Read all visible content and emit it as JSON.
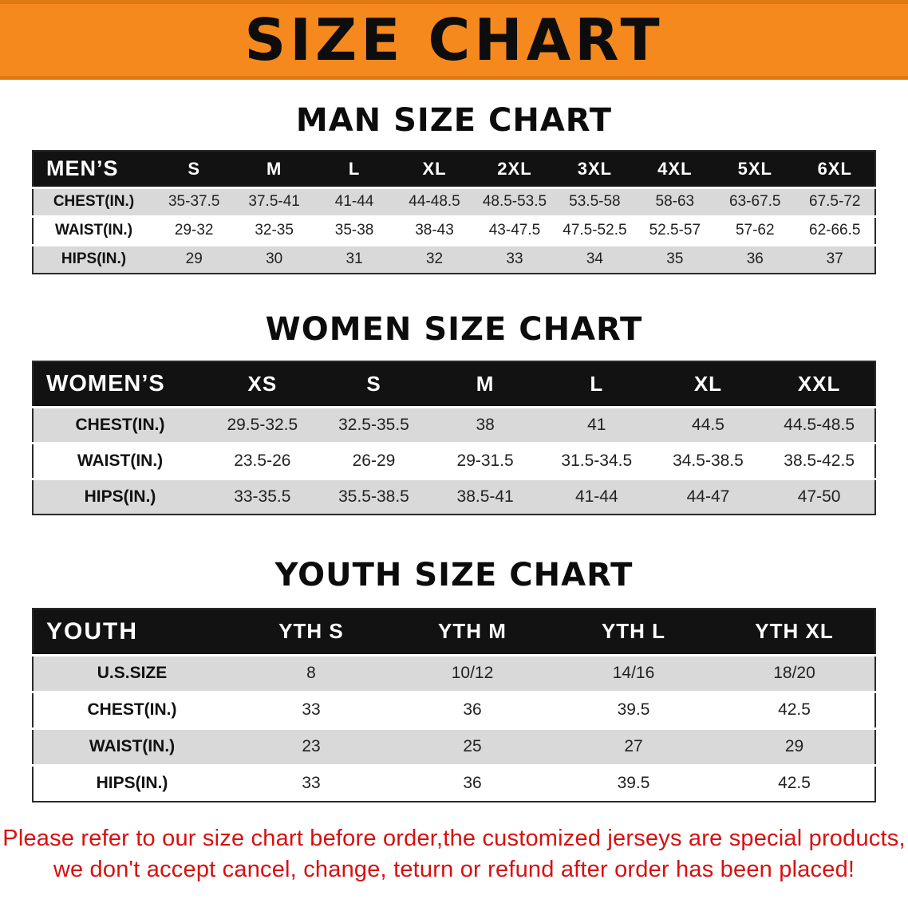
{
  "banner": {
    "title": "SIZE CHART"
  },
  "sections": [
    {
      "heading": "MAN SIZE CHART",
      "table": {
        "header": [
          "MEN’S",
          "S",
          "M",
          "L",
          "XL",
          "2XL",
          "3XL",
          "4XL",
          "5XL",
          "6XL"
        ],
        "rows": [
          [
            "CHEST(IN.)",
            "35-37.5",
            "37.5-41",
            "41-44",
            "44-48.5",
            "48.5-53.5",
            "53.5-58",
            "58-63",
            "63-67.5",
            "67.5-72"
          ],
          [
            "WAIST(IN.)",
            "29-32",
            "32-35",
            "35-38",
            "38-43",
            "43-47.5",
            "47.5-52.5",
            "52.5-57",
            "57-62",
            "62-66.5"
          ],
          [
            "HIPS(IN.)",
            "29",
            "30",
            "31",
            "32",
            "33",
            "34",
            "35",
            "36",
            "37"
          ]
        ]
      }
    },
    {
      "heading": "WOMEN SIZE CHART",
      "table": {
        "header": [
          "WOMEN’S",
          "XS",
          "S",
          "M",
          "L",
          "XL",
          "XXL"
        ],
        "rows": [
          [
            "CHEST(IN.)",
            "29.5-32.5",
            "32.5-35.5",
            "38",
            "41",
            "44.5",
            "44.5-48.5"
          ],
          [
            "WAIST(IN.)",
            "23.5-26",
            "26-29",
            "29-31.5",
            "31.5-34.5",
            "34.5-38.5",
            "38.5-42.5"
          ],
          [
            "HIPS(IN.)",
            "33-35.5",
            "35.5-38.5",
            "38.5-41",
            "41-44",
            "44-47",
            "47-50"
          ]
        ]
      }
    },
    {
      "heading": "YOUTH SIZE CHART",
      "table": {
        "header": [
          "YOUTH",
          "YTH S",
          "YTH M",
          "YTH L",
          "YTH XL"
        ],
        "rows": [
          [
            "U.S.SIZE",
            "8",
            "10/12",
            "14/16",
            "18/20"
          ],
          [
            "CHEST(IN.)",
            "33",
            "36",
            "39.5",
            "42.5"
          ],
          [
            "WAIST(IN.)",
            "23",
            "25",
            "27",
            "29"
          ],
          [
            "HIPS(IN.)",
            "33",
            "36",
            "39.5",
            "42.5"
          ]
        ]
      }
    }
  ],
  "footer": {
    "line1": "Please refer to our size chart before order,the customized jerseys are special products,",
    "line2": "we don't accept cancel, change, teturn or refund after order has been placed!"
  },
  "colors": {
    "banner_bg": "#f6891e",
    "header_bg": "#121212",
    "shade_row": "#d9d9d9",
    "footer_text": "#d81010"
  }
}
